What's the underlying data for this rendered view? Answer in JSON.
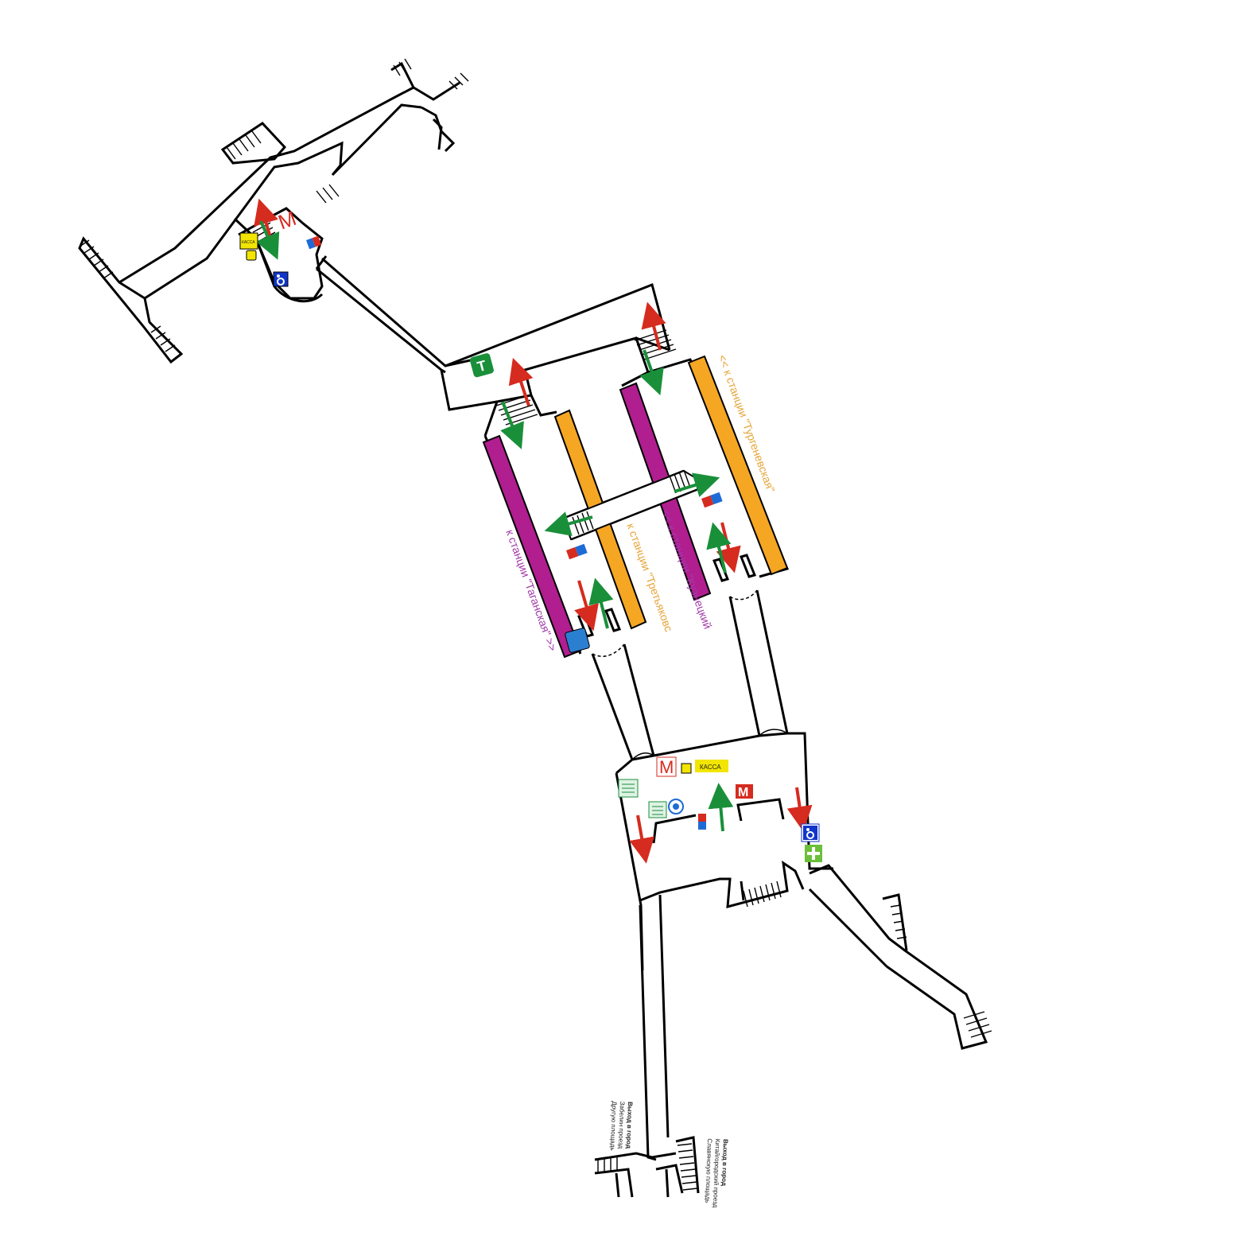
{
  "map": {
    "labels": {
      "to_taganskaya": "к станции \"Таганская\" >>",
      "to_tretyakovskaya": "к станции \"Третьяковс",
      "to_kuznetsky": "<< к станции \"Кузнецкий",
      "to_turgenevskaya": "<< к станции \"Тургеневская\""
    },
    "kassa_label": "КАССА",
    "kassa_short": "КАССА",
    "metro_letter": "М",
    "transfer_letter": "Т",
    "exit_left": {
      "title": "Выход в город",
      "line1": "Забелин проезд",
      "line2": "Другую площадь"
    },
    "exit_right": {
      "title": "Выход в город",
      "line1": "Китайгородский проезд",
      "line2": "Славянскую площадь"
    },
    "colors": {
      "line_purple": "#B01E8F",
      "line_orange": "#F5A623",
      "arrow_red": "#D62B1F",
      "arrow_green": "#1A8F3A",
      "kassa_yellow": "#F2E500",
      "accessible_blue": "#1035C9",
      "transfer_green": "#1A8F3A",
      "medical_green": "#6BBF3A",
      "info_blue": "#1E6BD6",
      "label_purple": "#A23AA8",
      "label_orange": "#E7A539"
    },
    "icons": [
      "metro-logo-icon",
      "transfer-icon",
      "accessible-icon",
      "medical-icon",
      "info-icon",
      "ticket-machine-icon",
      "kassa-icon"
    ]
  }
}
